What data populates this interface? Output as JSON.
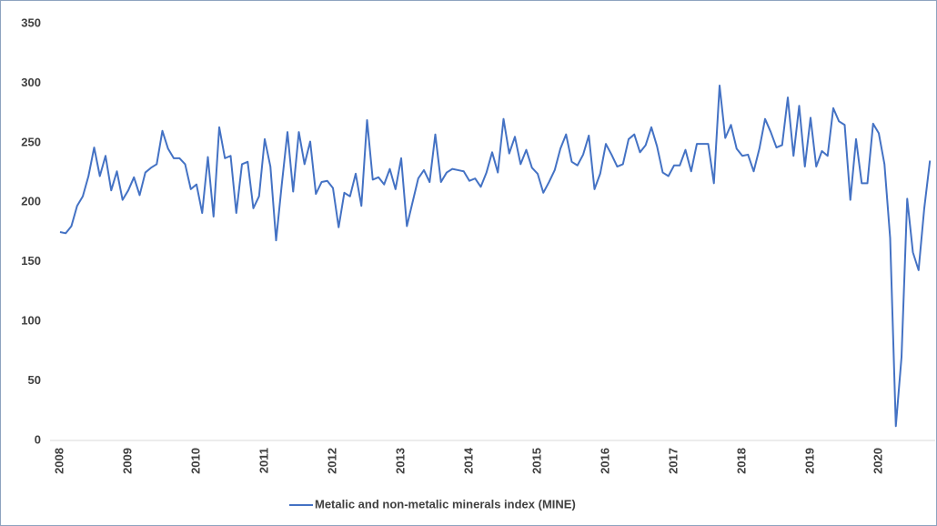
{
  "chart_data": {
    "type": "line",
    "categories": [
      "2008",
      null,
      null,
      null,
      null,
      null,
      null,
      null,
      null,
      null,
      null,
      null,
      "2009",
      null,
      null,
      null,
      null,
      null,
      null,
      null,
      null,
      null,
      null,
      null,
      "2010",
      null,
      null,
      null,
      null,
      null,
      null,
      null,
      null,
      null,
      null,
      null,
      "2011",
      null,
      null,
      null,
      null,
      null,
      null,
      null,
      null,
      null,
      null,
      null,
      "2012",
      null,
      null,
      null,
      null,
      null,
      null,
      null,
      null,
      null,
      null,
      null,
      "2013",
      null,
      null,
      null,
      null,
      null,
      null,
      null,
      null,
      null,
      null,
      null,
      "2014",
      null,
      null,
      null,
      null,
      null,
      null,
      null,
      null,
      null,
      null,
      null,
      "2015",
      null,
      null,
      null,
      null,
      null,
      null,
      null,
      null,
      null,
      null,
      null,
      "2016",
      null,
      null,
      null,
      null,
      null,
      null,
      null,
      null,
      null,
      null,
      null,
      "2017",
      null,
      null,
      null,
      null,
      null,
      null,
      null,
      null,
      null,
      null,
      null,
      "2018",
      null,
      null,
      null,
      null,
      null,
      null,
      null,
      null,
      null,
      null,
      null,
      "2019",
      null,
      null,
      null,
      null,
      null,
      null,
      null,
      null,
      null,
      null,
      null,
      "2020",
      null,
      null,
      null,
      null,
      null,
      null,
      null,
      null,
      null
    ],
    "series": [
      {
        "name": "Metalic and non-metalic minerals index (MINE)",
        "color": "#4472c4",
        "values": [
          175,
          174,
          180,
          197,
          205,
          222,
          246,
          222,
          239,
          210,
          226,
          202,
          210,
          221,
          206,
          225,
          229,
          232,
          260,
          245,
          237,
          237,
          232,
          211,
          215,
          191,
          238,
          188,
          263,
          237,
          239,
          191,
          232,
          234,
          195,
          205,
          253,
          230,
          168,
          215,
          259,
          209,
          259,
          232,
          251,
          207,
          217,
          218,
          212,
          179,
          208,
          205,
          224,
          197,
          269,
          219,
          221,
          215,
          228,
          211,
          237,
          180,
          200,
          220,
          227,
          217,
          257,
          217,
          225,
          228,
          227,
          226,
          218,
          220,
          213,
          225,
          242,
          225,
          270,
          241,
          255,
          232,
          244,
          229,
          224,
          208,
          217,
          227,
          245,
          257,
          234,
          231,
          240,
          256,
          211,
          224,
          249,
          240,
          230,
          232,
          253,
          257,
          242,
          248,
          263,
          247,
          225,
          222,
          231,
          231,
          244,
          226,
          249,
          249,
          249,
          216,
          298,
          254,
          265,
          245,
          239,
          240,
          226,
          245,
          270,
          259,
          246,
          248,
          288,
          239,
          281,
          230,
          271,
          230,
          243,
          239,
          279,
          268,
          265,
          202,
          253,
          216,
          216,
          266,
          258,
          232,
          170,
          12,
          70,
          203,
          158,
          143,
          195,
          235
        ]
      }
    ],
    "ylim": [
      0,
      350
    ],
    "yticks": [
      0,
      50,
      100,
      150,
      200,
      250,
      300,
      350
    ],
    "grid": false,
    "legend": "bottom"
  }
}
